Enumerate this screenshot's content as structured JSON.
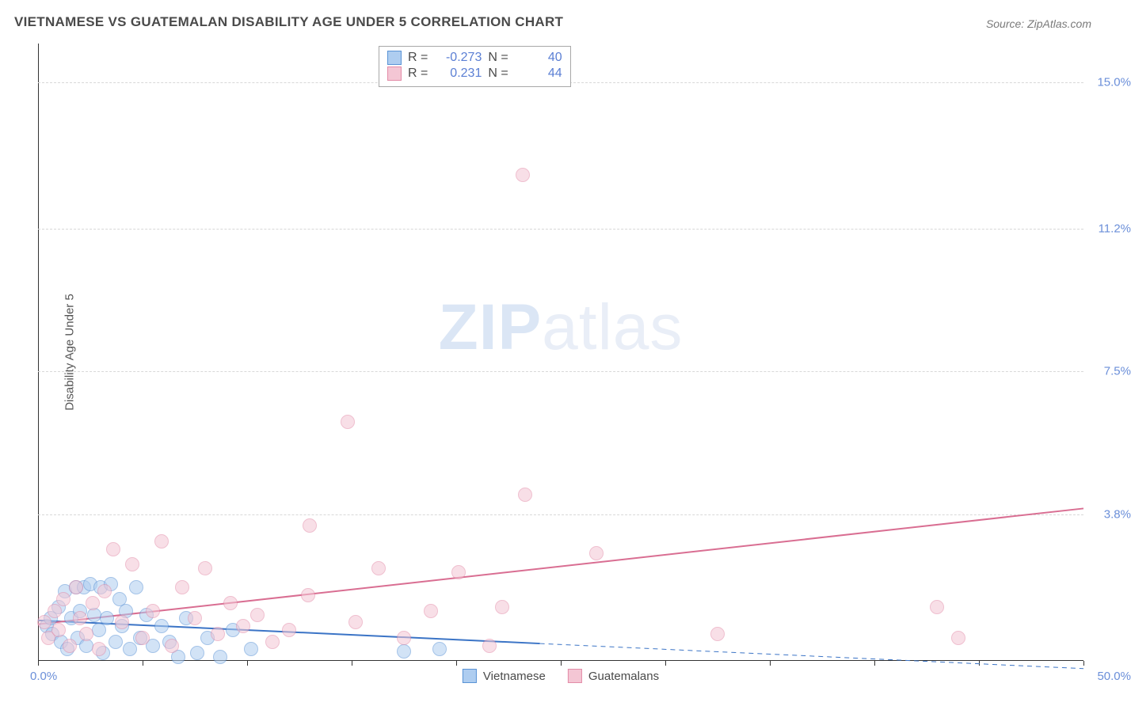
{
  "header": {
    "title": "VIETNAMESE VS GUATEMALAN DISABILITY AGE UNDER 5 CORRELATION CHART",
    "source_prefix": "Source: ",
    "source_name": "ZipAtlas.com"
  },
  "chart": {
    "type": "scatter",
    "ylabel": "Disability Age Under 5",
    "xlim": [
      0,
      50
    ],
    "ylim": [
      0,
      16
    ],
    "x_tick_step": 5,
    "x_min_label": "0.0%",
    "x_max_label": "50.0%",
    "y_ticks": [
      {
        "v": 3.8,
        "label": "3.8%"
      },
      {
        "v": 7.5,
        "label": "7.5%"
      },
      {
        "v": 11.2,
        "label": "11.2%"
      },
      {
        "v": 15.0,
        "label": "15.0%"
      }
    ],
    "grid_color": "#d8d8d8",
    "axis_color": "#333333",
    "background_color": "#ffffff",
    "point_radius": 9,
    "point_opacity": 0.55,
    "watermark_zip": "ZIP",
    "watermark_atlas": "atlas",
    "series": [
      {
        "name": "Vietnamese",
        "fill": "#aecdf0",
        "stroke": "#5a93d6",
        "trend_color": "#3b74c6",
        "trend_width": 2,
        "trend_y0": 1.05,
        "trend_y50": -0.2,
        "trend_solid_xmax": 24,
        "R": "-0.273",
        "N": "40",
        "points": [
          {
            "x": 0.4,
            "y": 0.9
          },
          {
            "x": 0.6,
            "y": 1.1
          },
          {
            "x": 0.7,
            "y": 0.7
          },
          {
            "x": 1.0,
            "y": 1.4
          },
          {
            "x": 1.1,
            "y": 0.5
          },
          {
            "x": 1.3,
            "y": 1.8
          },
          {
            "x": 1.4,
            "y": 0.3
          },
          {
            "x": 1.6,
            "y": 1.1
          },
          {
            "x": 1.8,
            "y": 1.9
          },
          {
            "x": 1.9,
            "y": 0.6
          },
          {
            "x": 2.0,
            "y": 1.3
          },
          {
            "x": 2.2,
            "y": 1.9
          },
          {
            "x": 2.3,
            "y": 0.4
          },
          {
            "x": 2.5,
            "y": 2.0
          },
          {
            "x": 2.7,
            "y": 1.2
          },
          {
            "x": 2.9,
            "y": 0.8
          },
          {
            "x": 3.0,
            "y": 1.9
          },
          {
            "x": 3.1,
            "y": 0.2
          },
          {
            "x": 3.3,
            "y": 1.1
          },
          {
            "x": 3.5,
            "y": 2.0
          },
          {
            "x": 3.7,
            "y": 0.5
          },
          {
            "x": 3.9,
            "y": 1.6
          },
          {
            "x": 4.0,
            "y": 0.9
          },
          {
            "x": 4.2,
            "y": 1.3
          },
          {
            "x": 4.4,
            "y": 0.3
          },
          {
            "x": 4.7,
            "y": 1.9
          },
          {
            "x": 4.9,
            "y": 0.6
          },
          {
            "x": 5.2,
            "y": 1.2
          },
          {
            "x": 5.5,
            "y": 0.4
          },
          {
            "x": 5.9,
            "y": 0.9
          },
          {
            "x": 6.3,
            "y": 0.5
          },
          {
            "x": 6.7,
            "y": 0.1
          },
          {
            "x": 7.1,
            "y": 1.1
          },
          {
            "x": 7.6,
            "y": 0.2
          },
          {
            "x": 8.1,
            "y": 0.6
          },
          {
            "x": 8.7,
            "y": 0.1
          },
          {
            "x": 9.3,
            "y": 0.8
          },
          {
            "x": 10.2,
            "y": 0.3
          },
          {
            "x": 17.5,
            "y": 0.25
          },
          {
            "x": 19.2,
            "y": 0.3
          }
        ]
      },
      {
        "name": "Guatemalans",
        "fill": "#f4c6d4",
        "stroke": "#e38ca8",
        "trend_color": "#d96e92",
        "trend_width": 2,
        "trend_y0": 0.95,
        "trend_y50": 3.95,
        "trend_solid_xmax": 50,
        "R": "0.231",
        "N": "44",
        "points": [
          {
            "x": 0.3,
            "y": 1.0
          },
          {
            "x": 0.5,
            "y": 0.6
          },
          {
            "x": 0.8,
            "y": 1.3
          },
          {
            "x": 1.0,
            "y": 0.8
          },
          {
            "x": 1.2,
            "y": 1.6
          },
          {
            "x": 1.5,
            "y": 0.4
          },
          {
            "x": 1.8,
            "y": 1.9
          },
          {
            "x": 2.0,
            "y": 1.1
          },
          {
            "x": 2.3,
            "y": 0.7
          },
          {
            "x": 2.6,
            "y": 1.5
          },
          {
            "x": 2.9,
            "y": 0.3
          },
          {
            "x": 3.2,
            "y": 1.8
          },
          {
            "x": 3.6,
            "y": 2.9
          },
          {
            "x": 4.0,
            "y": 1.0
          },
          {
            "x": 4.5,
            "y": 2.5
          },
          {
            "x": 5.0,
            "y": 0.6
          },
          {
            "x": 5.5,
            "y": 1.3
          },
          {
            "x": 5.9,
            "y": 3.1
          },
          {
            "x": 6.4,
            "y": 0.4
          },
          {
            "x": 6.9,
            "y": 1.9
          },
          {
            "x": 7.5,
            "y": 1.1
          },
          {
            "x": 8.0,
            "y": 2.4
          },
          {
            "x": 8.6,
            "y": 0.7
          },
          {
            "x": 9.2,
            "y": 1.5
          },
          {
            "x": 9.8,
            "y": 0.9
          },
          {
            "x": 10.5,
            "y": 1.2
          },
          {
            "x": 11.2,
            "y": 0.5
          },
          {
            "x": 12.0,
            "y": 0.8
          },
          {
            "x": 12.9,
            "y": 1.7
          },
          {
            "x": 13.0,
            "y": 3.5
          },
          {
            "x": 14.8,
            "y": 6.2
          },
          {
            "x": 15.2,
            "y": 1.0
          },
          {
            "x": 16.3,
            "y": 2.4
          },
          {
            "x": 17.5,
            "y": 0.6
          },
          {
            "x": 18.8,
            "y": 1.3
          },
          {
            "x": 20.1,
            "y": 2.3
          },
          {
            "x": 21.6,
            "y": 0.4
          },
          {
            "x": 22.2,
            "y": 1.4
          },
          {
            "x": 23.2,
            "y": 12.6
          },
          {
            "x": 23.3,
            "y": 4.3
          },
          {
            "x": 26.7,
            "y": 2.8
          },
          {
            "x": 32.5,
            "y": 0.7
          },
          {
            "x": 43.0,
            "y": 1.4
          },
          {
            "x": 44.0,
            "y": 0.6
          }
        ]
      }
    ],
    "stats_labels": {
      "R": "R =",
      "N": "N ="
    }
  },
  "legend": {
    "s1": "Vietnamese",
    "s2": "Guatemalans"
  }
}
